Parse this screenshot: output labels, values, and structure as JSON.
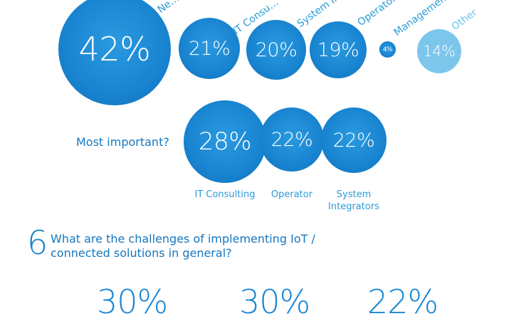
{
  "chart_data": [
    {
      "type": "bubble",
      "categories": [
        "Ne…",
        "IT Consu…",
        "System In…",
        "Operator",
        "Management c…",
        "Other"
      ],
      "values": [
        42,
        21,
        20,
        19,
        4,
        14
      ],
      "value_labels": [
        "42%",
        "21%",
        "20%",
        "19%",
        "4%",
        "14%"
      ],
      "colors": [
        "#1a86d2",
        "#1a86d2",
        "#1a86d2",
        "#1a86d2",
        "#1a86d2",
        "#7cc6ec"
      ]
    },
    {
      "type": "bubble",
      "title": "Most important?",
      "categories": [
        "IT Consulting",
        "Operator",
        "System\nIntegrators"
      ],
      "values": [
        28,
        22,
        22
      ],
      "value_labels": [
        "28%",
        "22%",
        "22%"
      ]
    }
  ],
  "question": {
    "number": "6",
    "text": "What are the challenges of implementing IoT / connected solutions in general?"
  },
  "cut_values": [
    "30%",
    "30%",
    "22%"
  ],
  "colors": {
    "dark_blue": "#1a86d2",
    "light_blue": "#7cc6ec",
    "label_blue": "#2a9bd8",
    "title_blue": "#1577c0"
  }
}
